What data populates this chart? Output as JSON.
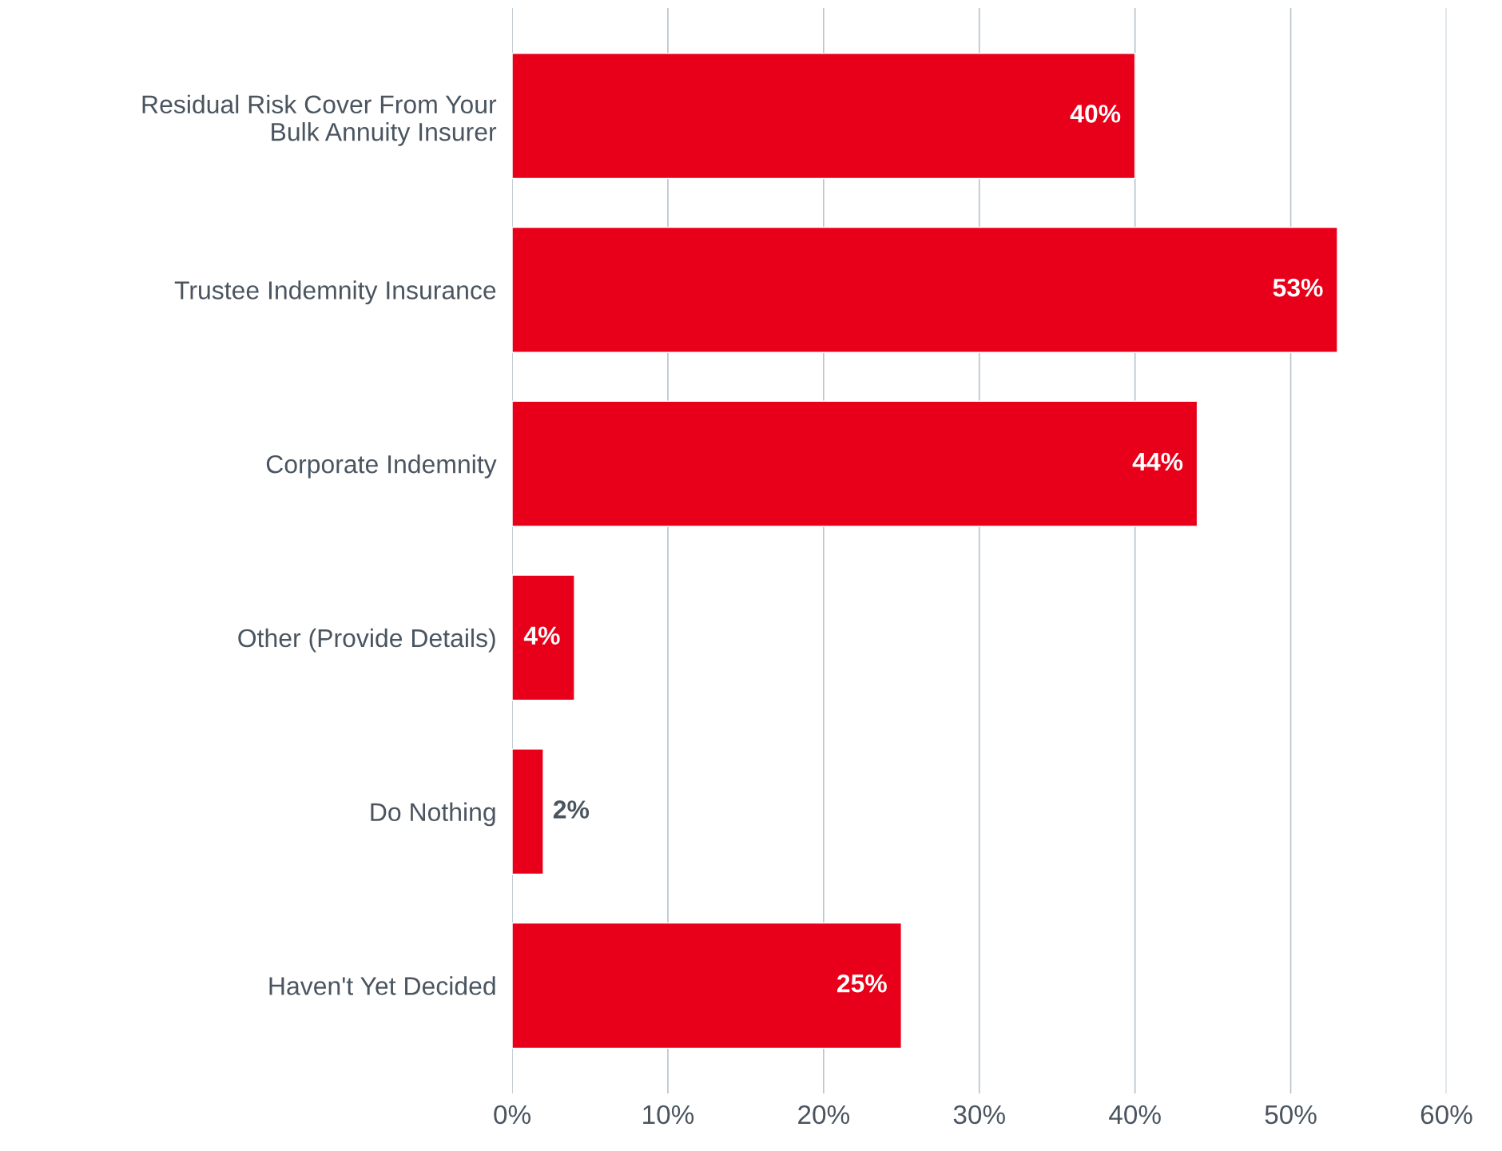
{
  "chart_data": {
    "type": "bar",
    "orientation": "horizontal",
    "categories": [
      "Residual Risk Cover From Your\nBulk Annuity Insurer",
      "Trustee Indemnity Insurance",
      "Corporate Indemnity",
      "Other (Provide Details)",
      "Do Nothing",
      "Haven't Yet Decided"
    ],
    "values": [
      40,
      53,
      44,
      4,
      2,
      25
    ],
    "value_labels": [
      "40%",
      "53%",
      "44%",
      "4%",
      "2%",
      "25%"
    ],
    "color": "#e8001a",
    "xlim": [
      0,
      60
    ],
    "xticks": [
      {
        "value": 0,
        "label": "0%"
      },
      {
        "value": 10,
        "label": "10%"
      },
      {
        "value": 20,
        "label": "20%"
      },
      {
        "value": 30,
        "label": "30%"
      },
      {
        "value": 40,
        "label": "40%"
      },
      {
        "value": 50,
        "label": "50%"
      },
      {
        "value": 60,
        "label": "60%"
      }
    ],
    "grid": "x"
  }
}
